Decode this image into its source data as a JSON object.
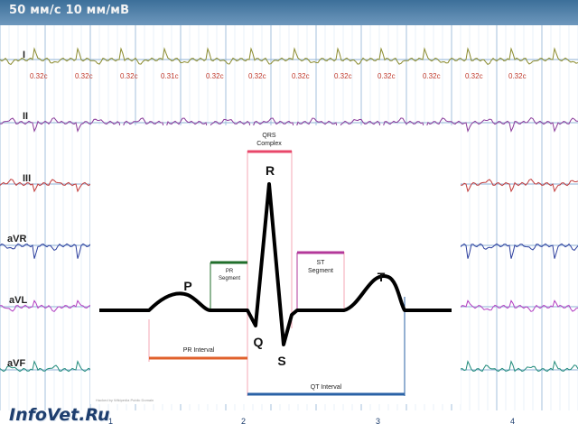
{
  "header": {
    "speed_label": "50 мм/с 10 мм/мВ"
  },
  "leads": [
    "I",
    "II",
    "III",
    "aVR",
    "aVL",
    "aVF"
  ],
  "rr_intervals": [
    "0.32c",
    "0.32c",
    "0.32c",
    "0.31c",
    "0.32c",
    "0.32c",
    "0.32c",
    "0.32c",
    "0.32c",
    "0.32c",
    "0.32c",
    "0.32c"
  ],
  "axis_numbers": [
    "1",
    "2",
    "3",
    "4"
  ],
  "logo": "InfoVet.Ru",
  "overlay_text": [
    "",
    ""
  ],
  "diagram": {
    "waves": {
      "p": "P",
      "q": "Q",
      "r": "R",
      "s": "S",
      "t": "T"
    },
    "labels": {
      "qrs_line1": "QRS",
      "qrs_line2": "Complex",
      "pr_segment_line1": "PR",
      "pr_segment_line2": "Segment",
      "st_segment_line1": "ST",
      "st_segment_line2": "Segment",
      "pr_interval": "PR Interval",
      "qt_interval": "QT Interval"
    },
    "credit": "Hacked by Wikipedia Public Domain",
    "colors": {
      "qrs": "#e8476a",
      "pr_segment": "#1f6e2a",
      "st_segment": "#b3389a",
      "pr_interval": "#e0602b",
      "qt_interval": "#2a62a6",
      "guide": "#f5a7b4"
    }
  },
  "colors": {
    "grid": "#8fb2d6",
    "grid_minor": "#d4e3f1",
    "lead_i": "#8a8a2c",
    "lead_ii": "#8a3a9a",
    "lead_iii": "#c23b3b",
    "lead_avr": "#2c3f9e",
    "lead_avl": "#b23ec2",
    "lead_avf": "#1f8a7a",
    "banner": "#3c6f99"
  }
}
